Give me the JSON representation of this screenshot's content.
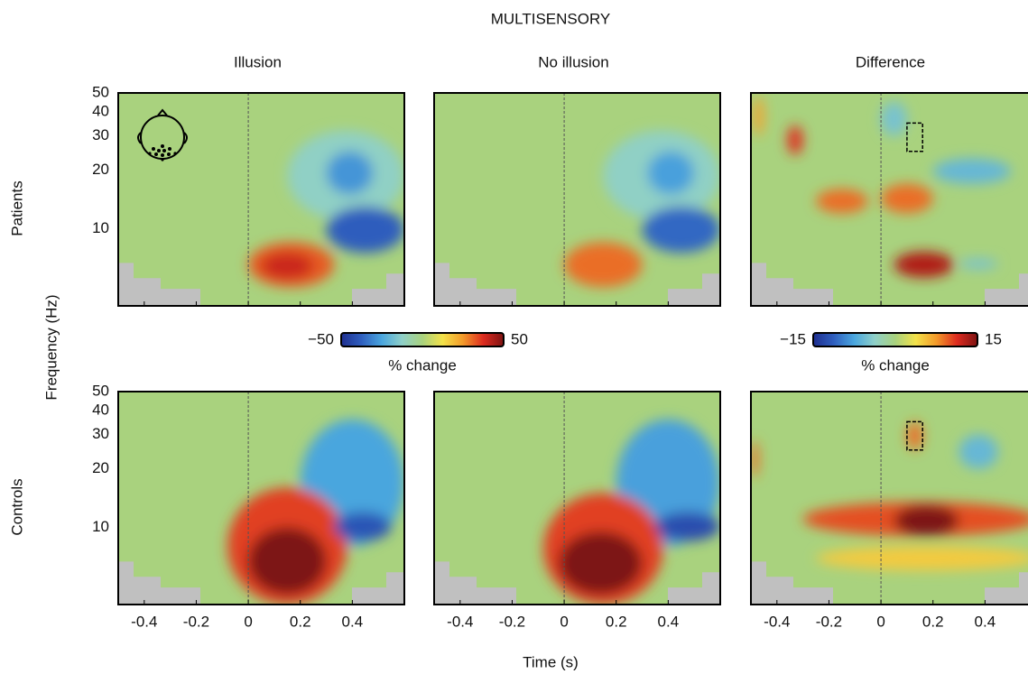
{
  "chart_data": {
    "type": "heatmap",
    "title": "MULTISENSORY",
    "columns": [
      "Illusion",
      "No illusion",
      "Difference"
    ],
    "xlabel": "Time (s)",
    "ylabel": "Frequency (Hz)",
    "xlim": [
      -0.5,
      0.6
    ],
    "xticks": [
      -0.4,
      -0.2,
      0,
      0.2,
      0.4
    ],
    "ylim": [
      4,
      50
    ],
    "yticks": [
      10,
      20,
      30,
      40,
      50
    ],
    "log_y": true,
    "colormap": [
      "#1f2f8f",
      "#2f5fbf",
      "#4aa6de",
      "#8fd0c8",
      "#a9d27e",
      "#f3e24a",
      "#f39a2a",
      "#dd2b1f",
      "#7d1212"
    ],
    "colorbars": [
      {
        "clim": [
          -50,
          50
        ],
        "ticks": [
          {
            "value": -50,
            "label": "−50"
          },
          50
        ],
        "label": "% change"
      },
      {
        "clim": [
          -15,
          15
        ],
        "ticks": [
          {
            "value": -15,
            "label": "−15"
          },
          15
        ],
        "label": "% change"
      }
    ],
    "rows": [
      {
        "label": "Patients",
        "panels": [
          {
            "colorbar": 0,
            "blobs": [
              {
                "t": [
                  0.15,
                  0.6
                ],
                "f": [
                  11,
                  32
                ],
                "value": -12
              },
              {
                "t": [
                  0.3,
                  0.48
                ],
                "f": [
                  15,
                  25
                ],
                "value": -28
              },
              {
                "t": [
                  0.3,
                  0.6
                ],
                "f": [
                  7.5,
                  13
                ],
                "value": -38
              },
              {
                "t": [
                  0.0,
                  0.33
                ],
                "f": [
                  5,
                  8.5
                ],
                "value": 32
              },
              {
                "t": [
                  0.05,
                  0.25
                ],
                "f": [
                  5.5,
                  7.5
                ],
                "value": 40
              }
            ]
          },
          {
            "colorbar": 0,
            "blobs": [
              {
                "t": [
                  0.15,
                  0.6
                ],
                "f": [
                  11,
                  32
                ],
                "value": -12
              },
              {
                "t": [
                  0.32,
                  0.5
                ],
                "f": [
                  15,
                  25
                ],
                "value": -26
              },
              {
                "t": [
                  0.3,
                  0.6
                ],
                "f": [
                  7.5,
                  13
                ],
                "value": -36
              },
              {
                "t": [
                  0.0,
                  0.3
                ],
                "f": [
                  5,
                  8.5
                ],
                "value": 30
              }
            ]
          },
          {
            "colorbar": 1,
            "roi": {
              "t": [
                0.1,
                0.16
              ],
              "f": [
                25,
                35
              ]
            },
            "blobs": [
              {
                "t": [
                  -0.49,
                  -0.45
                ],
                "f": [
                  30,
                  48
                ],
                "value": 7
              },
              {
                "t": [
                  -0.36,
                  -0.3
                ],
                "f": [
                  24,
                  34
                ],
                "value": 11
              },
              {
                "t": [
                  -0.25,
                  -0.05
                ],
                "f": [
                  12,
                  16
                ],
                "value": 9
              },
              {
                "t": [
                  0.0,
                  0.2
                ],
                "f": [
                  12,
                  17
                ],
                "value": 9
              },
              {
                "t": [
                  0.05,
                  0.28
                ],
                "f": [
                  5.6,
                  7.6
                ],
                "value": 13
              },
              {
                "t": [
                  0.2,
                  0.5
                ],
                "f": [
                  17,
                  23
                ],
                "value": -6
              },
              {
                "t": [
                  0.0,
                  0.1
                ],
                "f": [
                  30,
                  45
                ],
                "value": -5
              },
              {
                "t": [
                  0.3,
                  0.45
                ],
                "f": [
                  6.2,
                  7
                ],
                "value": -5
              }
            ]
          }
        ]
      },
      {
        "label": "Controls",
        "panels": [
          {
            "colorbar": 0,
            "blobs": [
              {
                "t": [
                  0.2,
                  0.6
                ],
                "f": [
                  8,
                  36
                ],
                "value": -25
              },
              {
                "t": [
                  0.33,
                  0.55
                ],
                "f": [
                  8.5,
                  12
                ],
                "value": -40
              },
              {
                "t": [
                  -0.08,
                  0.38
                ],
                "f": [
                  4,
                  16
                ],
                "value": 35
              },
              {
                "t": [
                  0.0,
                  0.3
                ],
                "f": [
                  4.5,
                  10
                ],
                "value": 50
              }
            ]
          },
          {
            "colorbar": 0,
            "blobs": [
              {
                "t": [
                  0.2,
                  0.6
                ],
                "f": [
                  8,
                  36
                ],
                "value": -26
              },
              {
                "t": [
                  0.35,
                  0.6
                ],
                "f": [
                  8.5,
                  12
                ],
                "value": -42
              },
              {
                "t": [
                  -0.08,
                  0.38
                ],
                "f": [
                  4,
                  15
                ],
                "value": 35
              },
              {
                "t": [
                  -0.02,
                  0.3
                ],
                "f": [
                  4.5,
                  9.5
                ],
                "value": 50
              }
            ]
          },
          {
            "colorbar": 1,
            "roi": {
              "t": [
                0.1,
                0.16
              ],
              "f": [
                25,
                35
              ]
            },
            "blobs": [
              {
                "t": [
                  -0.25,
                  0.6
                ],
                "f": [
                  6,
                  8
                ],
                "value": 5
              },
              {
                "t": [
                  -0.3,
                  0.6
                ],
                "f": [
                  9,
                  13.5
                ],
                "value": 10
              },
              {
                "t": [
                  0.05,
                  0.3
                ],
                "f": [
                  9,
                  13
                ],
                "value": 15
              },
              {
                "t": [
                  0.1,
                  0.16
                ],
                "f": [
                  25,
                  35
                ],
                "value": 9
              },
              {
                "t": [
                  -0.5,
                  -0.47
                ],
                "f": [
                  18,
                  28
                ],
                "value": 9
              },
              {
                "t": [
                  0.3,
                  0.45
                ],
                "f": [
                  20,
                  30
                ],
                "value": -6
              }
            ]
          }
        ]
      }
    ]
  }
}
